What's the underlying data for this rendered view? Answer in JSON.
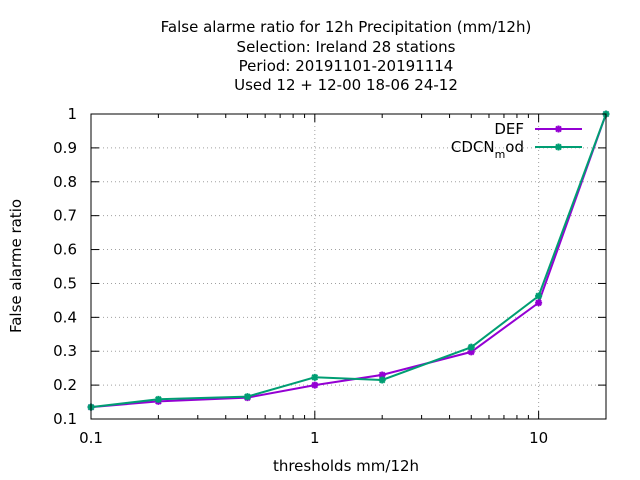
{
  "title_lines": [
    "False alarme ratio  for 12h Precipitation (mm/12h)",
    "Selection: Ireland      28 stations",
    "Period: 20191101-20191114",
    "Used  12 + 12-00 18-06 24-12"
  ],
  "chart_data": {
    "type": "line",
    "xlabel": "thresholds mm/12h",
    "ylabel": "False alarme ratio",
    "xscale": "log",
    "xlim": [
      0.1,
      20
    ],
    "ylim": [
      0.1,
      1.0
    ],
    "x_ticks": [
      0.1,
      1,
      10
    ],
    "x_tick_labels": [
      "0.1",
      "1",
      "10"
    ],
    "y_ticks": [
      0.1,
      0.2,
      0.3,
      0.4,
      0.5,
      0.6,
      0.7,
      0.8,
      0.9,
      1.0
    ],
    "y_tick_labels": [
      "0.1",
      "0.2",
      "0.3",
      "0.4",
      "0.5",
      "0.6",
      "0.7",
      "0.8",
      "0.9",
      "1"
    ],
    "grid": true,
    "legend_position": "top-right",
    "series": [
      {
        "name": "DEF",
        "color": "#9400d3",
        "x": [
          0.1,
          0.2,
          0.5,
          1,
          2,
          5,
          10,
          20
        ],
        "y": [
          0.135,
          0.152,
          0.163,
          0.2,
          0.23,
          0.298,
          0.443,
          1.0
        ]
      },
      {
        "name": "CDCN",
        "name_subscript": "m",
        "name_suffix": "od",
        "color": "#009e73",
        "x": [
          0.1,
          0.2,
          0.5,
          1,
          2,
          5,
          10,
          20
        ],
        "y": [
          0.135,
          0.158,
          0.166,
          0.223,
          0.215,
          0.312,
          0.463,
          1.0
        ]
      }
    ]
  }
}
